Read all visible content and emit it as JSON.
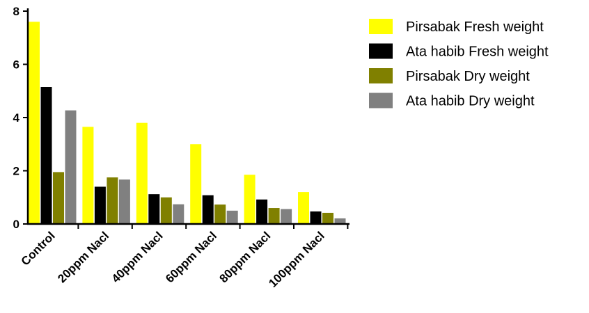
{
  "chart_data": {
    "type": "bar",
    "categories": [
      "Control",
      "20ppm Nacl",
      "40ppm Nacl",
      "60ppm Nacl",
      "80ppm Nacl",
      "100ppm Nacl"
    ],
    "series": [
      {
        "name": "Pirsabak Fresh weight",
        "color": "#ffff00",
        "values": [
          7.6,
          3.65,
          3.8,
          3.0,
          1.85,
          1.2
        ]
      },
      {
        "name": "Ata habib Fresh weight",
        "color": "#000000",
        "values": [
          5.15,
          1.4,
          1.12,
          1.08,
          0.92,
          0.47
        ]
      },
      {
        "name": "Pirsabak Dry weight",
        "color": "#808000",
        "values": [
          1.95,
          1.75,
          1.0,
          0.73,
          0.6,
          0.42
        ]
      },
      {
        "name": "Ata habib Dry weight",
        "color": "#808080",
        "values": [
          4.27,
          1.67,
          0.74,
          0.5,
          0.56,
          0.21
        ]
      }
    ],
    "yticks": [
      0,
      2,
      4,
      6,
      8
    ],
    "ylim": [
      0,
      8
    ],
    "title": "",
    "xlabel": "",
    "ylabel": "",
    "legend": "right",
    "grid": false
  }
}
